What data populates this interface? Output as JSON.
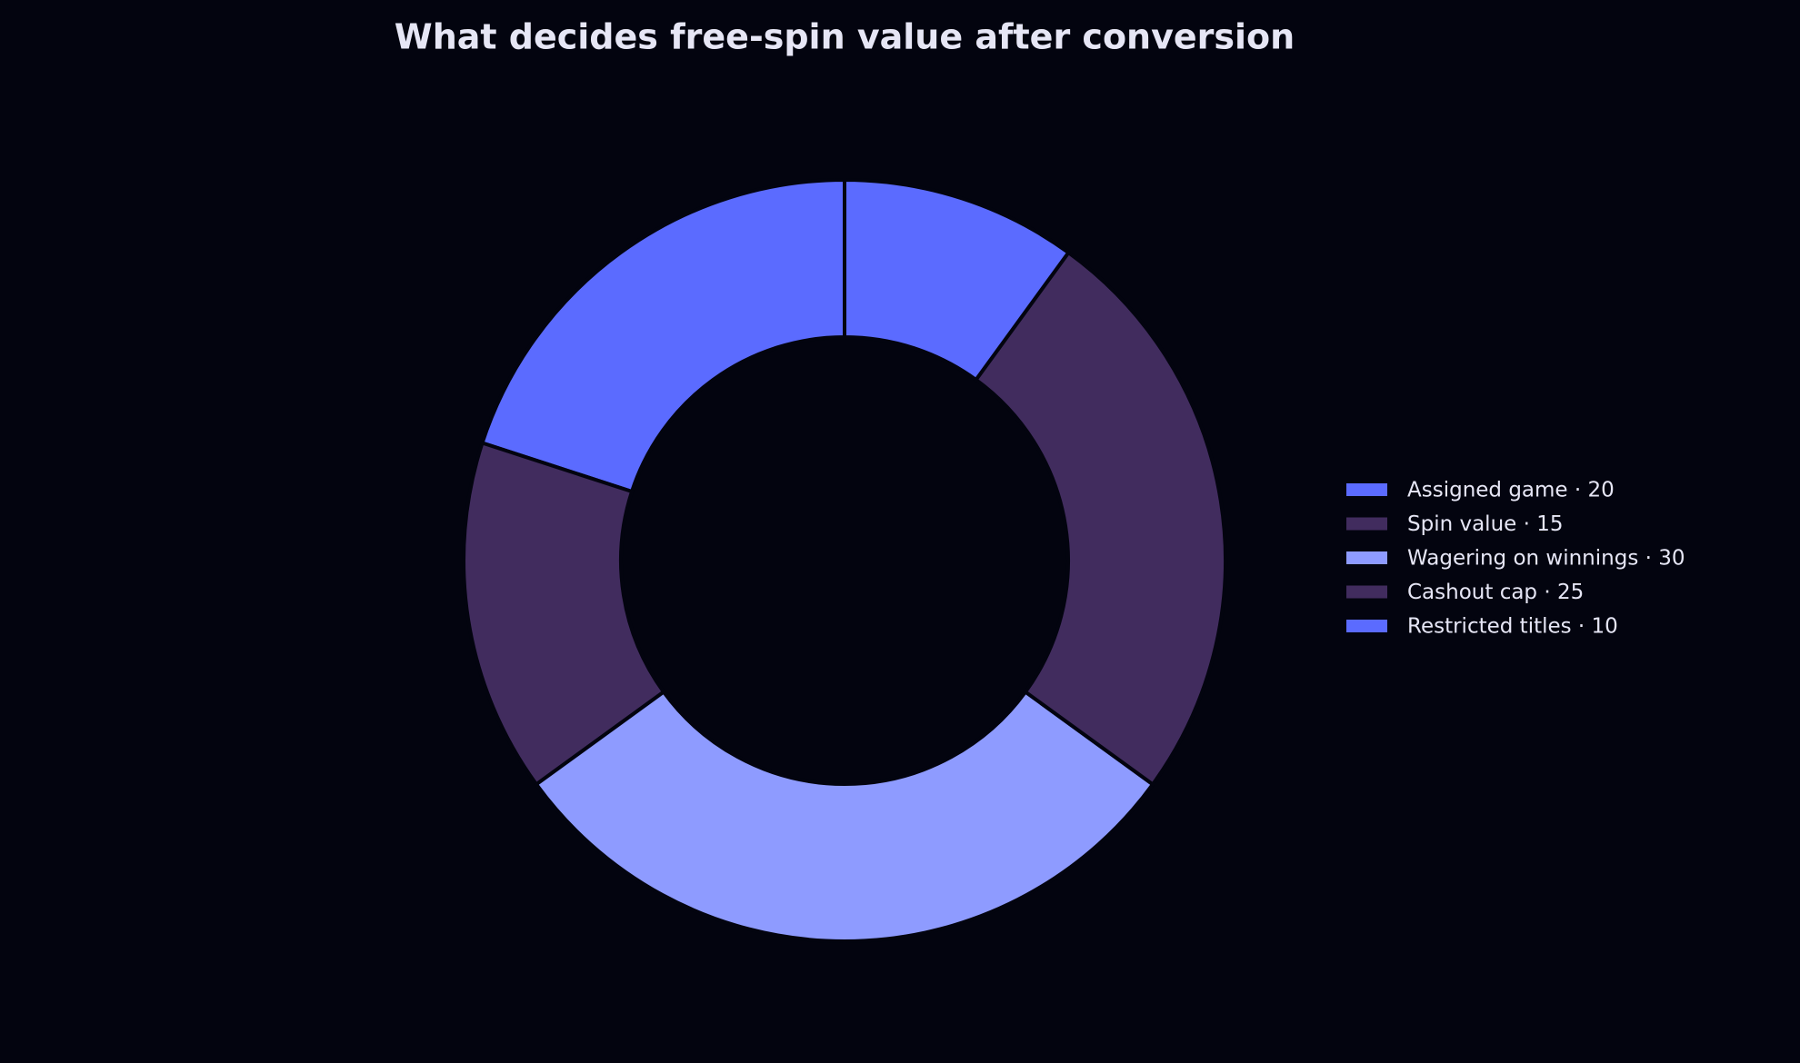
{
  "chart_data": {
    "type": "donut",
    "title": "What decides free-spin value after conversion",
    "categories": [
      "Assigned game · 20",
      "Spin value · 15",
      "Wagering on winnings · 30",
      "Cashout cap · 25",
      "Restricted titles · 10"
    ],
    "values": [
      20,
      15,
      30,
      25,
      10
    ],
    "colors": [
      "#5b6bff",
      "#412c5e",
      "#8e9bff",
      "#412c5e",
      "#5b6bff"
    ],
    "legend": "right"
  }
}
